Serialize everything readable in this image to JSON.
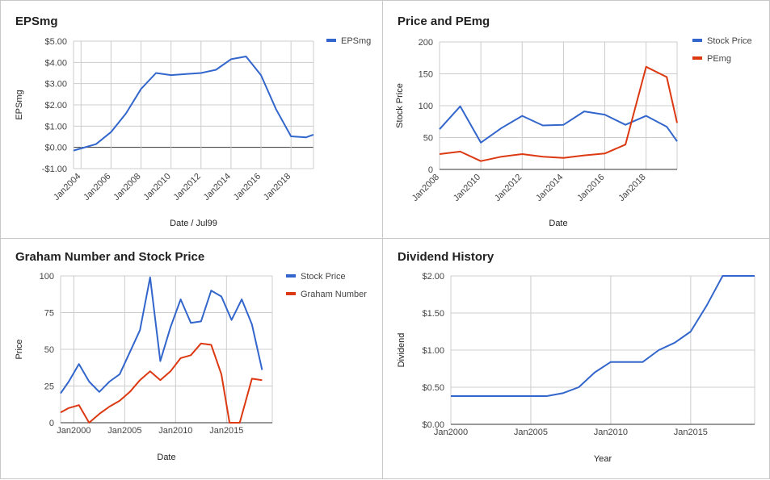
{
  "chart_data": [
    {
      "type": "line",
      "title": "EPSmg",
      "xlabel": "Date / Jul99",
      "ylabel": "EPSmg",
      "y_tick_labels": [
        "-$1.00",
        "$0.00",
        "$1.00",
        "$2.00",
        "$3.00",
        "$4.00",
        "$5.00"
      ],
      "x_tick_labels": [
        "Jan2004",
        "Jan2006",
        "Jan2008",
        "Jan2010",
        "Jan2012",
        "Jan2014",
        "Jan2016",
        "Jan2018"
      ],
      "xlim": [
        2003.5,
        2019.5
      ],
      "ylim": [
        -1,
        5
      ],
      "x_ticks": [
        2004,
        2006,
        2008,
        2010,
        2012,
        2014,
        2016,
        2018
      ],
      "y_ticks": [
        -1,
        0,
        1,
        2,
        3,
        4,
        5
      ],
      "legend_position": "top-right",
      "grid": true,
      "series": [
        {
          "name": "EPSmg",
          "color": "#3366cc",
          "x": [
            2003.5,
            2004,
            2005,
            2006,
            2007,
            2008,
            2009,
            2010,
            2011,
            2012,
            2013,
            2014,
            2015,
            2016,
            2017,
            2018,
            2019,
            2019.5
          ],
          "values": [
            -0.15,
            -0.05,
            0.15,
            0.72,
            1.6,
            2.75,
            3.5,
            3.4,
            3.45,
            3.5,
            3.65,
            4.15,
            4.28,
            3.4,
            1.8,
            0.52,
            0.47,
            0.6
          ]
        }
      ]
    },
    {
      "type": "line",
      "title": "Price and PEmg",
      "xlabel": "Date",
      "ylabel": "Stock Price",
      "y_tick_labels": [
        "0",
        "50",
        "100",
        "150",
        "200"
      ],
      "x_tick_labels": [
        "Jan2008",
        "Jan2010",
        "Jan2012",
        "Jan2014",
        "Jan2016",
        "Jan2018"
      ],
      "xlim": [
        2008,
        2019.5
      ],
      "ylim": [
        0,
        200
      ],
      "x_ticks": [
        2008,
        2010,
        2012,
        2014,
        2016,
        2018
      ],
      "y_ticks": [
        0,
        50,
        100,
        150,
        200
      ],
      "legend_position": "top-right",
      "grid": true,
      "series": [
        {
          "name": "Stock Price",
          "color": "#3366cc",
          "x": [
            2008,
            2009,
            2010,
            2011,
            2012,
            2013,
            2014,
            2015,
            2016,
            2017,
            2018,
            2019,
            2019.5
          ],
          "values": [
            63,
            99,
            42,
            65,
            84,
            69,
            70,
            91,
            86,
            70,
            84,
            67,
            44
          ]
        },
        {
          "name": "PEmg",
          "color": "#dc3912",
          "x": [
            2008,
            2009,
            2010,
            2011,
            2012,
            2013,
            2014,
            2015,
            2016,
            2017,
            2018,
            2019,
            2019.5
          ],
          "values": [
            24,
            28,
            13,
            20,
            24,
            20,
            18,
            22,
            25,
            39,
            161,
            145,
            73
          ]
        }
      ]
    },
    {
      "type": "line",
      "title": "Graham Number and Stock Price",
      "xlabel": "Date",
      "ylabel": "Price",
      "y_tick_labels": [
        "0",
        "25",
        "50",
        "75",
        "100"
      ],
      "x_tick_labels": [
        "Jan2000",
        "Jan2005",
        "Jan2010",
        "Jan2015"
      ],
      "xlim": [
        1998.7,
        2019.5
      ],
      "ylim": [
        0,
        100
      ],
      "x_ticks": [
        2000,
        2005,
        2010,
        2015
      ],
      "y_ticks": [
        0,
        25,
        50,
        75,
        100
      ],
      "legend_position": "top-right",
      "grid": true,
      "series": [
        {
          "name": "Stock Price",
          "color": "#3366cc",
          "x": [
            1998.7,
            1999.5,
            2000.5,
            2001.5,
            2002.5,
            2003.5,
            2004.5,
            2005.5,
            2006.5,
            2007.5,
            2008.5,
            2009.5,
            2010.5,
            2011.5,
            2012.5,
            2013.5,
            2014.5,
            2015.5,
            2016.5,
            2017.5,
            2018.5
          ],
          "values": [
            20,
            28,
            40,
            28,
            21,
            28,
            33,
            48,
            63,
            99,
            42,
            65,
            84,
            68,
            69,
            90,
            86,
            70,
            84,
            67,
            36
          ]
        },
        {
          "name": "Graham Number",
          "color": "#dc3912",
          "x": [
            1998.7,
            1999.5,
            2000.5,
            2001.5,
            2002.5,
            2003.5,
            2004.5,
            2005.5,
            2006.5,
            2007.5,
            2008.5,
            2009.5,
            2010.5,
            2011.5,
            2012.5,
            2013.5,
            2014.5,
            2015.3,
            2016.3,
            2017.5,
            2018.5
          ],
          "values": [
            7,
            10,
            12,
            0,
            6,
            11,
            15,
            21,
            29,
            35,
            29,
            35,
            44,
            46,
            54,
            53,
            33,
            0,
            0,
            30,
            29
          ]
        }
      ]
    },
    {
      "type": "line",
      "title": "Dividend History",
      "xlabel": "Year",
      "ylabel": "Dividend",
      "y_tick_labels": [
        "$0.00",
        "$0.50",
        "$1.00",
        "$1.50",
        "$2.00"
      ],
      "x_tick_labels": [
        "Jan2000",
        "Jan2005",
        "Jan2010",
        "Jan2015"
      ],
      "xlim": [
        2000,
        2019
      ],
      "ylim": [
        0,
        2
      ],
      "x_ticks": [
        2000,
        2005,
        2010,
        2015
      ],
      "y_ticks": [
        0,
        0.5,
        1,
        1.5,
        2
      ],
      "legend_position": "none",
      "grid": true,
      "series": [
        {
          "name": "",
          "color": "#3366cc",
          "x": [
            2000,
            2001,
            2002,
            2003,
            2004,
            2005,
            2006,
            2007,
            2008,
            2009,
            2010,
            2011,
            2012,
            2013,
            2014,
            2015,
            2016,
            2017,
            2018,
            2019
          ],
          "values": [
            0.38,
            0.38,
            0.38,
            0.38,
            0.38,
            0.38,
            0.38,
            0.42,
            0.5,
            0.7,
            0.84,
            0.84,
            0.84,
            1.0,
            1.1,
            1.25,
            1.6,
            2.0,
            2.0,
            2.0
          ]
        }
      ]
    }
  ]
}
